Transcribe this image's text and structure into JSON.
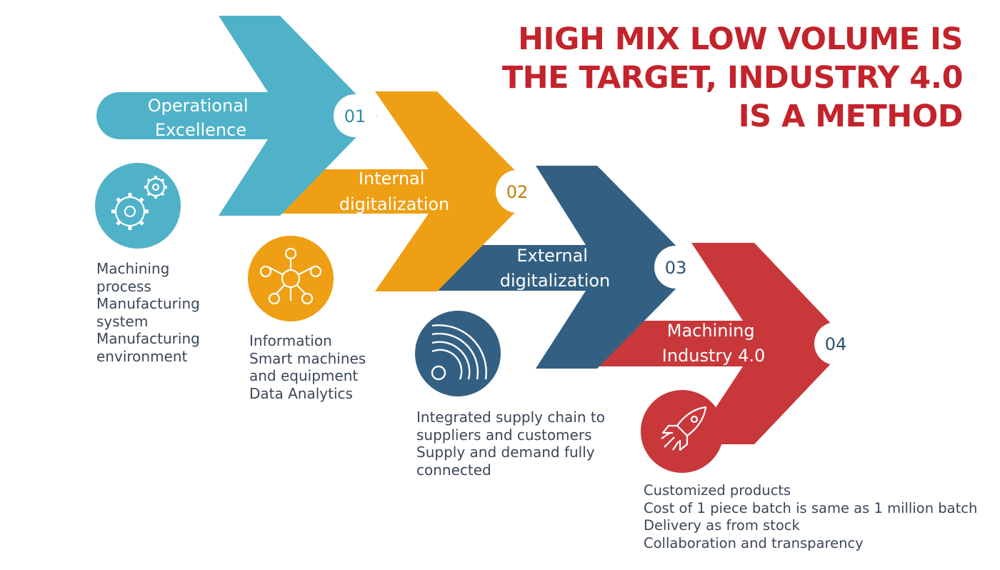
{
  "headline": {
    "lines": [
      "HIGH MIX LOW VOLUME IS",
      "THE TARGET, INDUSTRY 4.0",
      "IS A METHOD"
    ],
    "color": "#c3232b"
  },
  "steps": [
    {
      "number": "01",
      "label_lines": [
        "Operational",
        "Excellence"
      ],
      "color": "#4fb2c8",
      "icon": "gears-icon",
      "description": [
        "Machining",
        "process",
        "Manufacturing",
        "system",
        "Manufacturing",
        "environment"
      ]
    },
    {
      "number": "02",
      "label_lines": [
        "Internal",
        "digitalization"
      ],
      "color": "#ee9f14",
      "icon": "network-hub-icon",
      "description": [
        "Information",
        "Smart machines",
        "and equipment",
        "Data Analytics"
      ]
    },
    {
      "number": "03",
      "label_lines": [
        "External",
        "digitalization"
      ],
      "color": "#336082",
      "icon": "wireless-signal-icon",
      "description": [
        "Integrated supply chain to",
        "suppliers and customers",
        "Supply and demand fully",
        "connected"
      ]
    },
    {
      "number": "04",
      "label_lines": [
        "Machining",
        "Industry 4.0"
      ],
      "color": "#c8383b",
      "icon": "rocket-icon",
      "description": [
        "Customized products",
        "Cost of 1 piece batch is same as 1 million batch",
        "Delivery as from stock",
        "Collaboration and transparency"
      ]
    }
  ]
}
